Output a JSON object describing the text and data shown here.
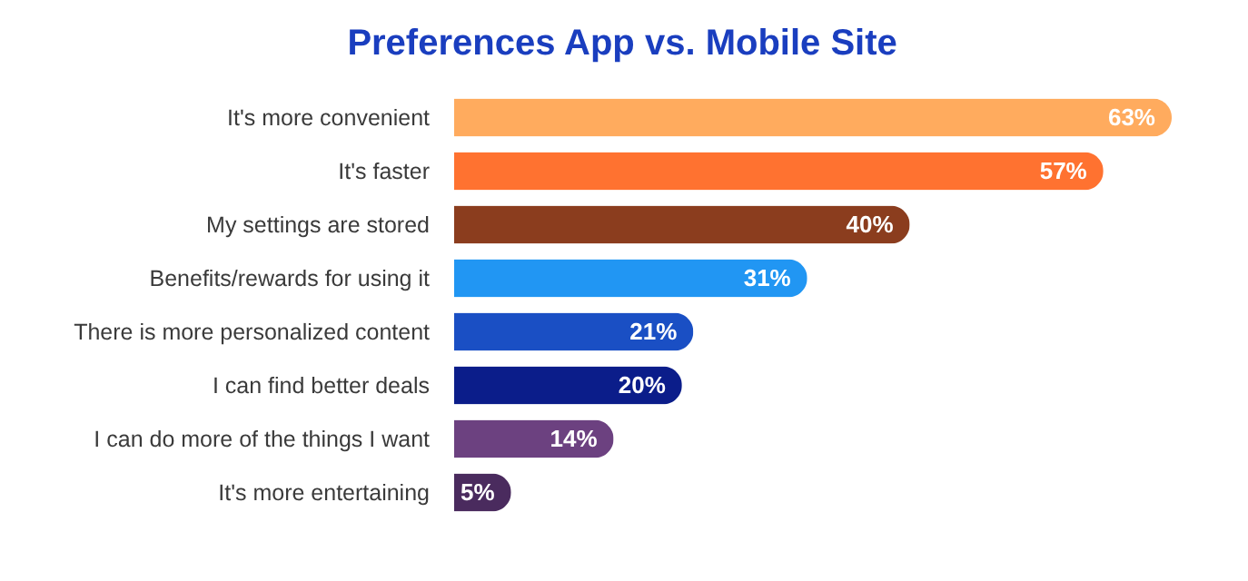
{
  "chart_data": {
    "type": "bar",
    "orientation": "horizontal",
    "title": "Preferences App vs. Mobile Site",
    "categories": [
      "It's more convenient",
      "It's faster",
      "My settings are stored",
      "Benefits/rewards for using it",
      "There is more personalized content",
      "I can find better deals",
      "I can do more of the things I want",
      "It's more entertaining"
    ],
    "values": [
      63,
      57,
      40,
      31,
      21,
      20,
      14,
      5
    ],
    "colors": [
      "#ffab5e",
      "#ff7230",
      "#8b3d1e",
      "#2196f3",
      "#1a4fc4",
      "#0b1d8a",
      "#6c4180",
      "#4a2b5e"
    ],
    "value_labels": [
      "63%",
      "57%",
      "40%",
      "31%",
      "21%",
      "20%",
      "14%",
      "5%"
    ],
    "legend": false
  }
}
